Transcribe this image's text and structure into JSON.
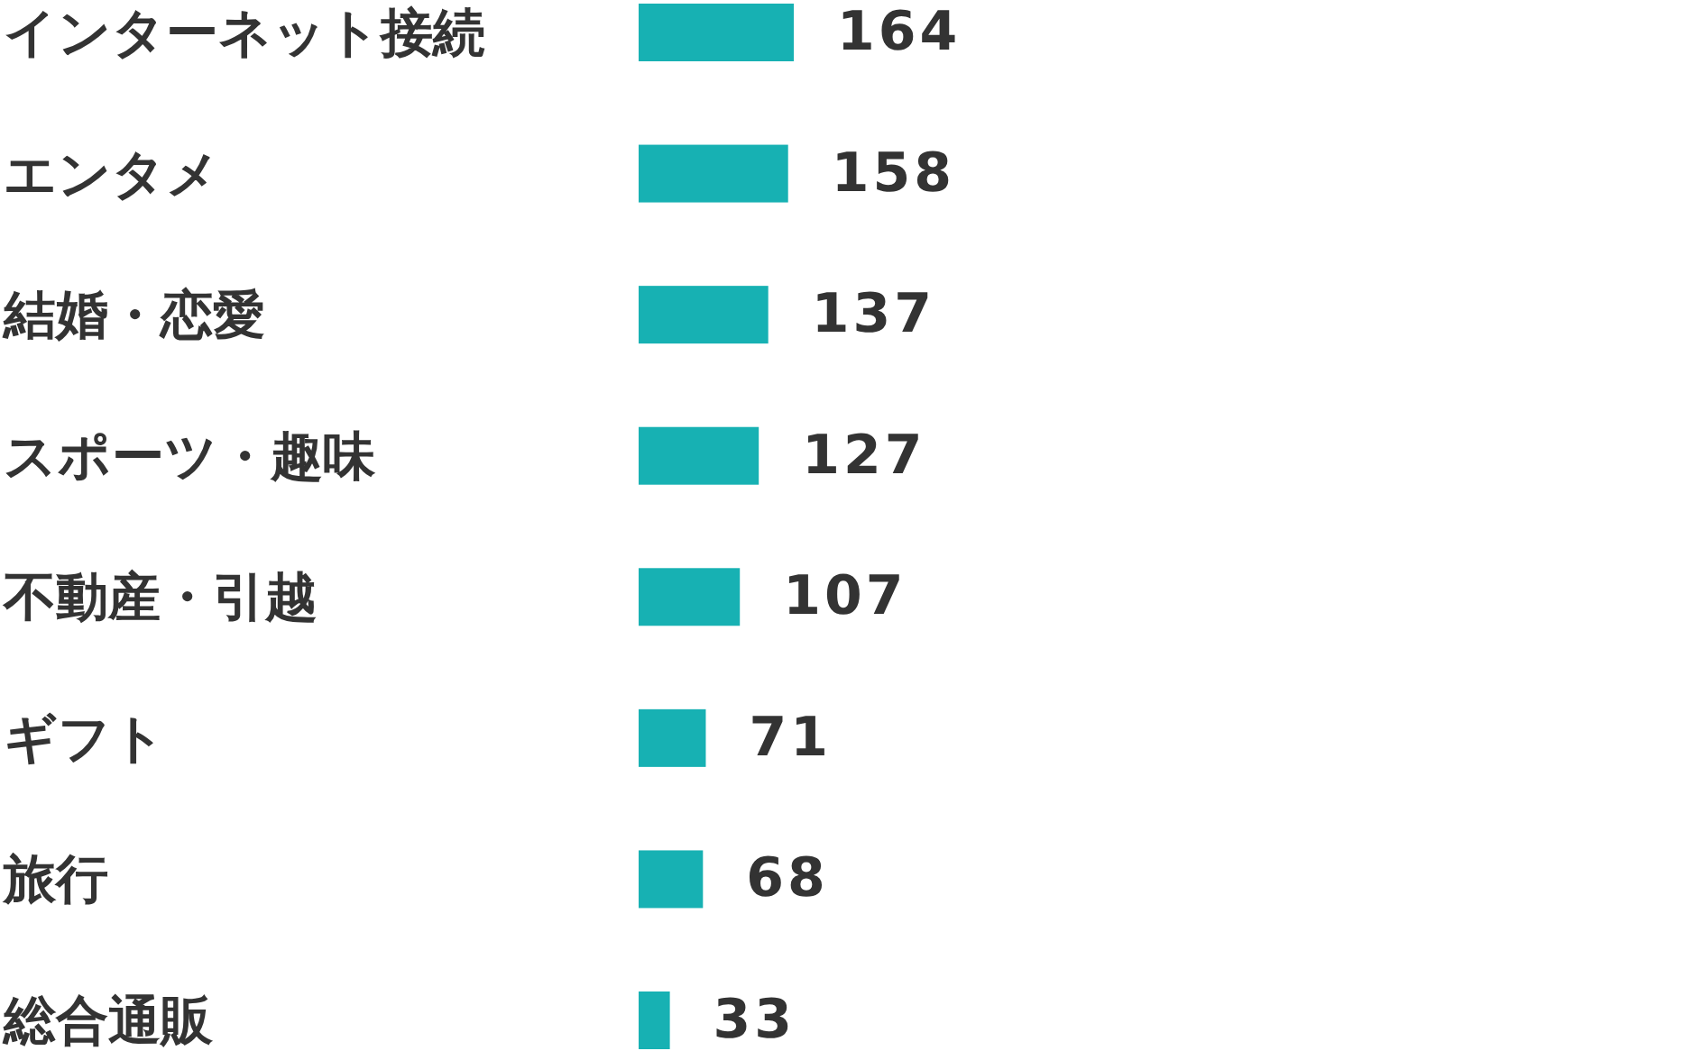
{
  "chart_data": {
    "type": "bar",
    "orientation": "horizontal",
    "data_labels": true,
    "color": "#17b1b3",
    "categories": [
      "インターネット接続",
      "エンタメ",
      "結婚・恋愛",
      "スポーツ・趣味",
      "不動産・引越",
      "ギフト",
      "旅行",
      "総合通販"
    ],
    "values": [
      164,
      158,
      137,
      127,
      107,
      71,
      68,
      33
    ]
  }
}
